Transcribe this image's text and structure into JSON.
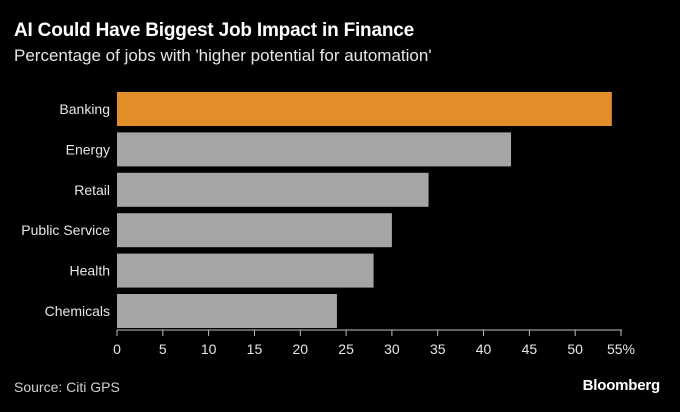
{
  "chart_data": {
    "type": "bar",
    "orientation": "horizontal",
    "title": "AI Could Have Biggest Job Impact in Finance",
    "subtitle": "Percentage of jobs with 'higher potential for automation'",
    "categories": [
      "Banking",
      "Energy",
      "Retail",
      "Public Service",
      "Health",
      "Chemicals"
    ],
    "values": [
      54,
      43,
      34,
      30,
      28,
      24
    ],
    "highlight": "Banking",
    "xlim": [
      0,
      55
    ],
    "xticks": [
      "0",
      "5",
      "10",
      "15",
      "20",
      "25",
      "30",
      "35",
      "40",
      "45",
      "50",
      "55%"
    ],
    "xlabel": "",
    "ylabel": "",
    "grid": false
  },
  "colors": {
    "highlight": "#e38e2a",
    "bar": "#a5a5a5",
    "background": "#000000",
    "text": "#ffffff"
  },
  "footer": {
    "source": "Source: Citi GPS",
    "brand": "Bloomberg"
  }
}
